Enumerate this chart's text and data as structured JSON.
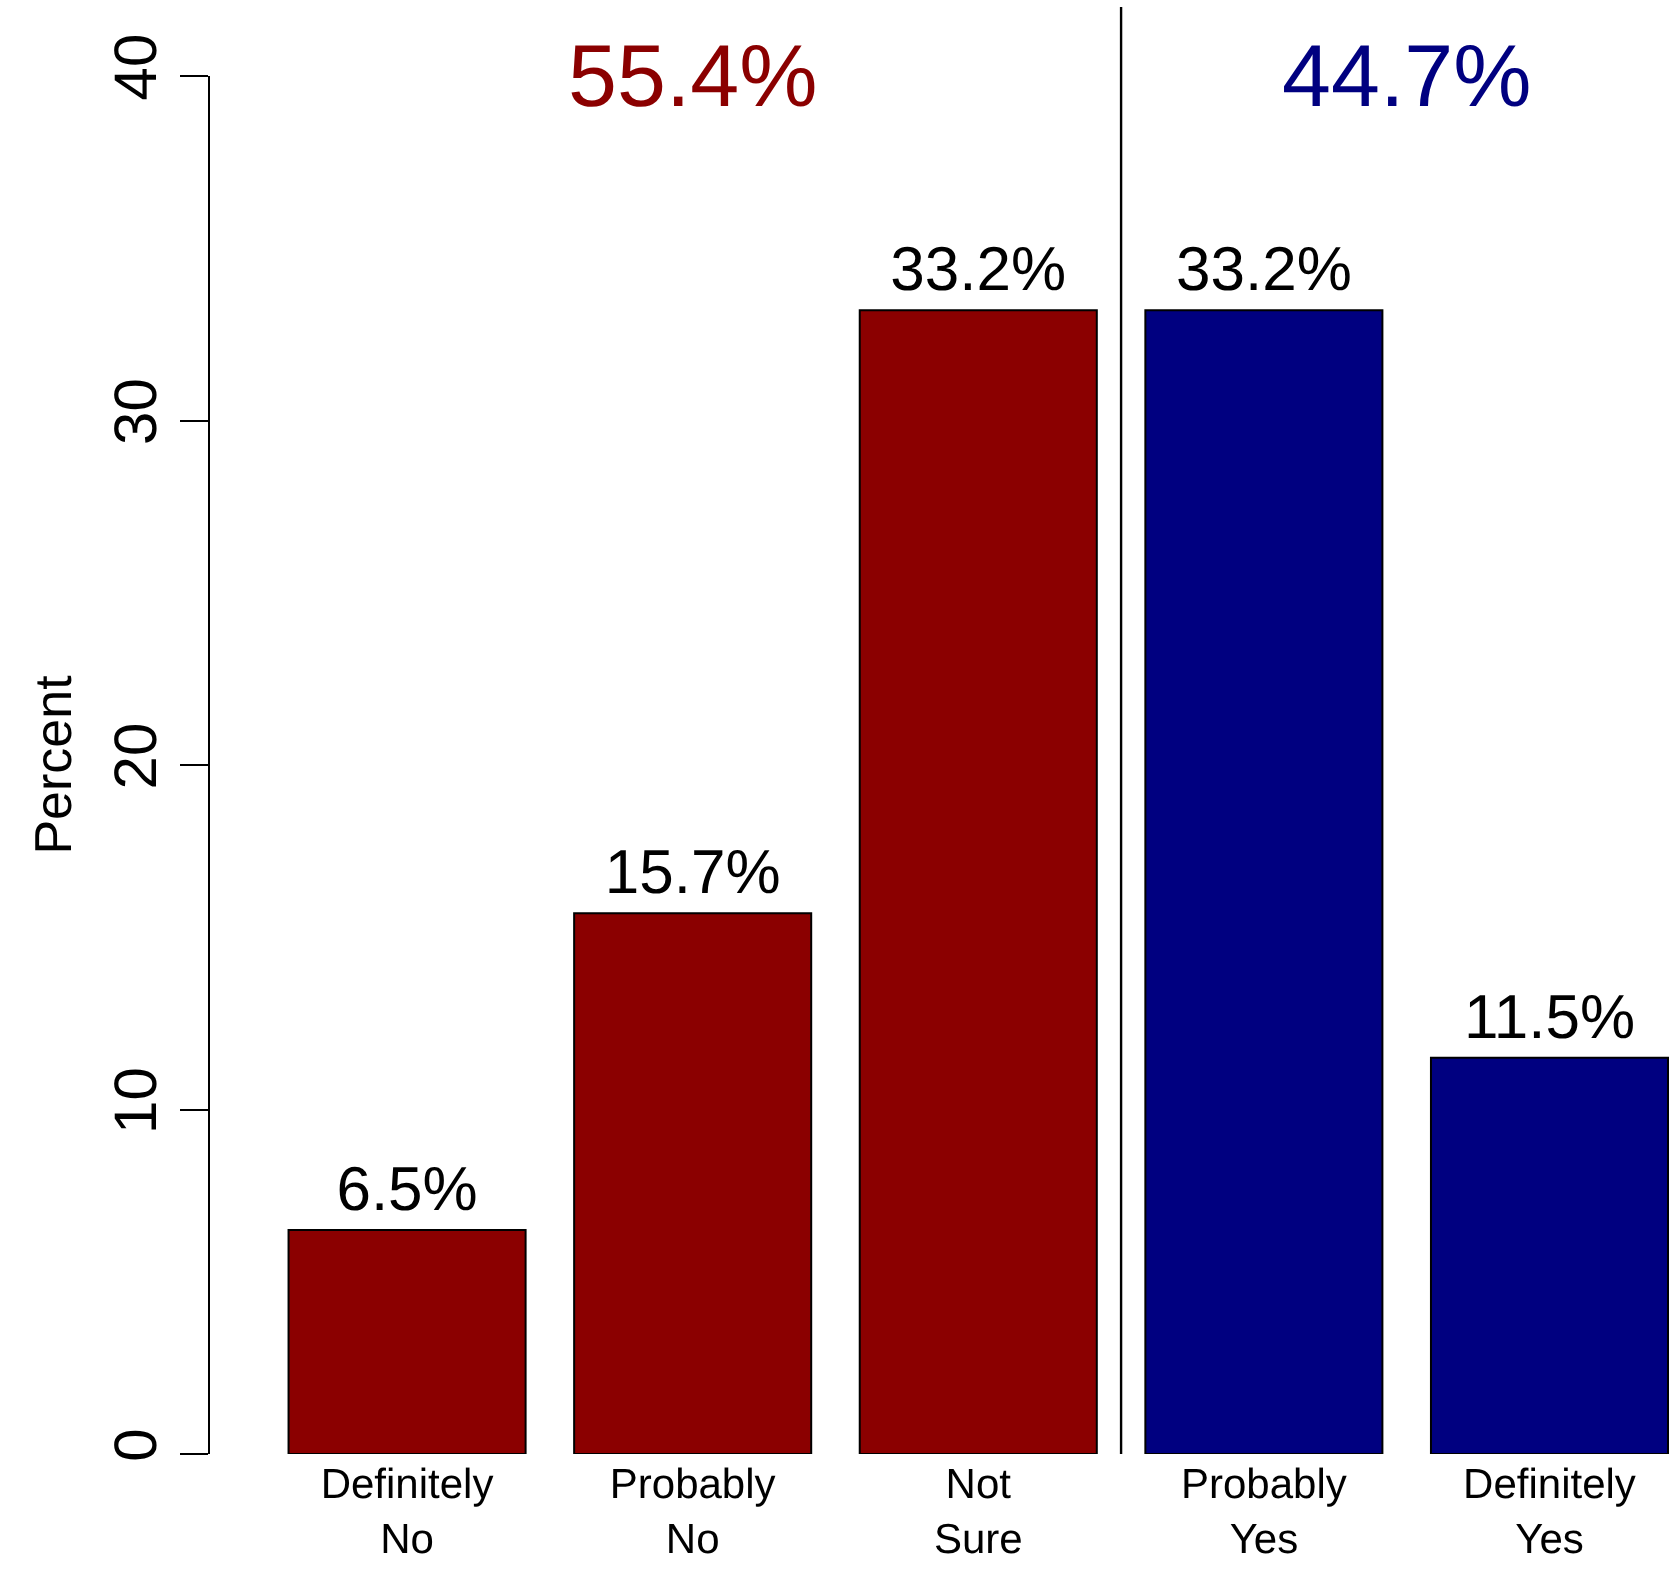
{
  "chart_data": {
    "type": "bar",
    "categories": [
      "Definitely\nNo",
      "Probably\nNo",
      "Not\nSure",
      "Probably\nYes",
      "Definitely\nYes"
    ],
    "values": [
      6.5,
      15.7,
      33.2,
      33.2,
      11.5
    ],
    "value_labels": [
      "6.5%",
      "15.7%",
      "33.2%",
      "33.2%",
      "11.5%"
    ],
    "colors": [
      "#8b0000",
      "#8b0000",
      "#8b0000",
      "#000080",
      "#000080"
    ],
    "ylabel": "Percent",
    "ylim": [
      0,
      40
    ],
    "yticks": [
      0,
      10,
      20,
      30,
      40
    ],
    "annotations": [
      "55.4%",
      "44.7%"
    ]
  }
}
